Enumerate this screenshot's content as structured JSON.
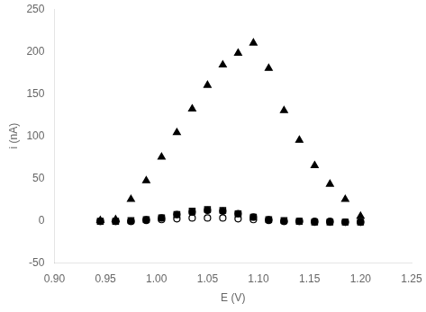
{
  "chart_data": {
    "type": "scatter",
    "xlabel": "E (V)",
    "ylabel": "i (nA)",
    "x": [
      0.945,
      0.96,
      0.975,
      0.99,
      1.005,
      1.02,
      1.035,
      1.05,
      1.065,
      1.08,
      1.095,
      1.11,
      1.125,
      1.14,
      1.155,
      1.17,
      1.185,
      1.2
    ],
    "series": [
      {
        "color": "#000000",
        "marker": "open_circle",
        "values": [
          -1,
          -1,
          -1,
          0,
          1,
          2,
          3,
          3,
          3,
          2,
          1,
          0,
          -1,
          -1,
          -1,
          -1,
          -2,
          -2
        ]
      },
      {
        "color": "#000000",
        "marker": "circle",
        "values": [
          -1,
          -1,
          -1,
          1,
          3,
          7,
          10,
          12,
          11,
          8,
          4,
          1,
          -1,
          -1,
          -2,
          -2,
          -2,
          -2
        ]
      },
      {
        "color": "#000000",
        "marker": "triangle",
        "values": [
          0,
          1,
          25,
          47,
          75,
          104,
          132,
          160,
          184,
          198,
          210,
          180,
          130,
          95,
          65,
          43,
          25,
          5
        ]
      },
      {
        "color": "#000000",
        "marker": "open_square",
        "values": [
          -1,
          -1,
          0,
          1,
          3,
          7,
          11,
          13,
          12,
          8,
          4,
          1,
          0,
          -1,
          -2,
          -2,
          -2,
          -2
        ]
      }
    ],
    "xlim": [
      0.9,
      1.25
    ],
    "ylim": [
      -50,
      250
    ],
    "xticks": [
      {
        "value": 0.9,
        "label": "0.90"
      },
      0.95,
      {
        "value": 1.0,
        "label": "1.00"
      },
      1.05,
      {
        "value": 1.1,
        "label": "1.10"
      },
      1.15,
      {
        "value": 1.2,
        "label": "1.20"
      },
      1.25
    ],
    "yticks": [
      -50,
      0,
      50,
      100,
      150,
      200,
      250
    ],
    "grid": false
  }
}
